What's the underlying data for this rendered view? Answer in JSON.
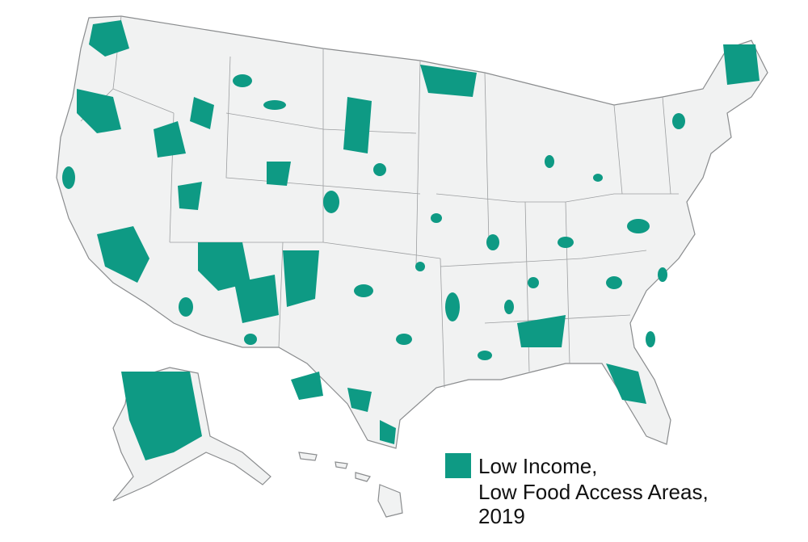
{
  "legend": {
    "color": "#0e9a84",
    "lines": [
      "Low Income,",
      "Low Food Access Areas,",
      "2019"
    ]
  }
}
